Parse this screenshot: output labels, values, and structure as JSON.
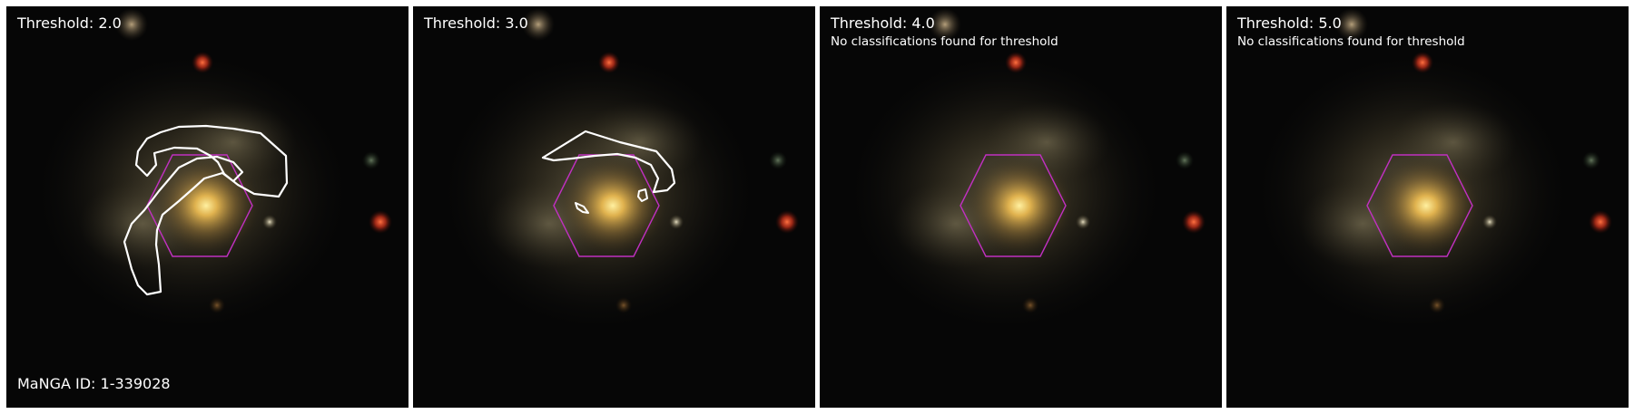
{
  "manga_id_label": "MaNGA ID: 1-339028",
  "colors": {
    "ifu_hexagon": "#c030c0",
    "contour": "#ffffff",
    "background": "#ffffff",
    "galaxy_core": "#ffd860"
  },
  "panels": [
    {
      "title": "Threshold: 2.0",
      "note": ""
    },
    {
      "title": "Threshold: 3.0",
      "note": ""
    },
    {
      "title": "Threshold: 4.0",
      "note": "No classifications found for threshold"
    },
    {
      "title": "Threshold: 5.0",
      "note": "No classifications found for threshold"
    }
  ]
}
